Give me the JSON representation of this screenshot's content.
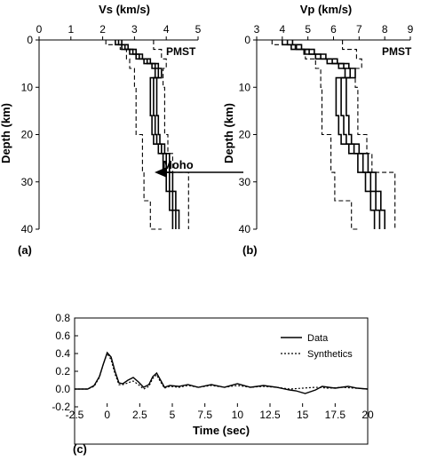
{
  "chart_data": [
    {
      "type": "line",
      "panel_label": "(a)",
      "xlabel": "Vs (km/s)",
      "ylabel": "Depth (km)",
      "station": "PMST",
      "annotation": "Moho",
      "annotation_depth": 28,
      "xlim": [
        0,
        5
      ],
      "ylim": [
        0,
        40
      ],
      "x_ticks": [
        "0",
        "1",
        "2",
        "3",
        "4",
        "5"
      ],
      "y_ticks": [
        "0",
        "10",
        "20",
        "30",
        "40"
      ],
      "series": [
        {
          "style": "solid",
          "depth": [
            0,
            1,
            2,
            3,
            4,
            5,
            6,
            8,
            12,
            16,
            20,
            22,
            24,
            28,
            32,
            36,
            40
          ],
          "values": [
            2.4,
            2.6,
            2.85,
            3.05,
            3.3,
            3.55,
            3.65,
            3.5,
            3.5,
            3.55,
            3.6,
            3.75,
            3.9,
            4.0,
            4.1,
            4.2,
            4.2
          ]
        },
        {
          "style": "solid",
          "depth": [
            0,
            1,
            2,
            3,
            4,
            5,
            6,
            8,
            12,
            16,
            20,
            22,
            24,
            28,
            32,
            36,
            40
          ],
          "values": [
            2.5,
            2.7,
            2.95,
            3.15,
            3.4,
            3.65,
            3.75,
            3.6,
            3.6,
            3.65,
            3.7,
            3.85,
            4.0,
            4.1,
            4.2,
            4.3,
            4.3
          ]
        },
        {
          "style": "solid",
          "depth": [
            0,
            1,
            2,
            3,
            4,
            5,
            6,
            8,
            12,
            16,
            20,
            22,
            24,
            28,
            32,
            36,
            40
          ],
          "values": [
            2.6,
            2.8,
            3.05,
            3.25,
            3.5,
            3.75,
            3.85,
            3.7,
            3.7,
            3.75,
            3.8,
            3.95,
            4.1,
            4.2,
            4.3,
            4.4,
            4.4
          ]
        },
        {
          "style": "dashed",
          "depth": [
            0,
            1,
            2,
            4,
            6,
            10,
            20,
            28,
            34,
            40
          ],
          "values": [
            2.1,
            2.55,
            2.75,
            2.85,
            3.0,
            3.05,
            3.25,
            3.3,
            3.5,
            3.85
          ]
        },
        {
          "style": "dashed",
          "depth": [
            0,
            2,
            4,
            6,
            10,
            20,
            24,
            28,
            34,
            40
          ],
          "values": [
            3.6,
            3.85,
            4.0,
            3.9,
            3.95,
            4.05,
            4.2,
            4.7,
            4.7,
            4.7
          ]
        }
      ]
    },
    {
      "type": "line",
      "panel_label": "(b)",
      "xlabel": "Vp (km/s)",
      "ylabel": "Depth (km)",
      "station": "PMST",
      "xlim": [
        3,
        9
      ],
      "ylim": [
        0,
        40
      ],
      "x_ticks": [
        "3",
        "4",
        "5",
        "6",
        "7",
        "8",
        "9"
      ],
      "y_ticks": [
        "0",
        "10",
        "20",
        "30",
        "40"
      ],
      "series": [
        {
          "style": "solid",
          "depth": [
            0,
            1,
            2,
            3,
            4,
            5,
            6,
            8,
            12,
            16,
            20,
            22,
            24,
            28,
            32,
            36,
            40
          ],
          "values": [
            4.0,
            4.35,
            4.85,
            5.3,
            5.75,
            6.2,
            6.45,
            6.1,
            6.1,
            6.2,
            6.3,
            6.6,
            6.95,
            7.25,
            7.45,
            7.6,
            7.6
          ]
        },
        {
          "style": "solid",
          "depth": [
            0,
            1,
            2,
            3,
            4,
            5,
            6,
            8,
            12,
            16,
            20,
            22,
            24,
            28,
            32,
            36,
            40
          ],
          "values": [
            4.2,
            4.55,
            5.05,
            5.5,
            5.95,
            6.4,
            6.65,
            6.3,
            6.3,
            6.4,
            6.5,
            6.8,
            7.15,
            7.45,
            7.65,
            7.8,
            7.8
          ]
        },
        {
          "style": "solid",
          "depth": [
            0,
            1,
            2,
            3,
            4,
            5,
            6,
            8,
            12,
            16,
            20,
            22,
            24,
            28,
            32,
            36,
            40
          ],
          "values": [
            4.4,
            4.75,
            5.25,
            5.7,
            6.15,
            6.6,
            6.85,
            6.5,
            6.5,
            6.6,
            6.7,
            7.0,
            7.35,
            7.65,
            7.85,
            8.0,
            8.0
          ]
        },
        {
          "style": "dashed",
          "depth": [
            0,
            1,
            2,
            4,
            6,
            10,
            20,
            28,
            34,
            40
          ],
          "values": [
            3.6,
            4.5,
            4.9,
            5.3,
            5.5,
            5.55,
            5.9,
            6.05,
            6.7,
            7.0
          ]
        },
        {
          "style": "dashed",
          "depth": [
            0,
            2,
            4,
            6,
            10,
            20,
            24,
            28,
            34,
            40
          ],
          "values": [
            6.35,
            6.9,
            7.1,
            6.85,
            6.95,
            7.3,
            7.5,
            8.4,
            8.4,
            8.4
          ]
        }
      ]
    },
    {
      "type": "line",
      "panel_label": "(c)",
      "xlabel": "Time (sec)",
      "ylabel": "",
      "xlim": [
        -2.5,
        20
      ],
      "ylim": [
        -0.2,
        0.8
      ],
      "x_ticks": [
        "-2.5",
        "0",
        "2.5",
        "5",
        "7.5",
        "10",
        "12.5",
        "15",
        "17.5",
        "20"
      ],
      "y_ticks": [
        "-0.2",
        "0.0",
        "0.2",
        "0.4",
        "0.6",
        "0.8"
      ],
      "legend_position": "right",
      "series": [
        {
          "name": "Data",
          "style": "solid",
          "x": [
            -2.5,
            -1.5,
            -1.0,
            -0.6,
            -0.3,
            0.0,
            0.3,
            0.6,
            0.9,
            1.2,
            1.6,
            2.0,
            2.4,
            2.8,
            3.2,
            3.5,
            3.8,
            4.1,
            4.4,
            4.8,
            5.5,
            6.2,
            7.0,
            8.0,
            9.0,
            10.0,
            11.0,
            12.0,
            13.0,
            14.0,
            14.5,
            15.2,
            16.0,
            16.5,
            17.5,
            18.5,
            19.2,
            20.0
          ],
          "y": [
            0.0,
            0.0,
            0.04,
            0.14,
            0.28,
            0.41,
            0.36,
            0.2,
            0.07,
            0.06,
            0.1,
            0.13,
            0.08,
            0.02,
            0.05,
            0.14,
            0.18,
            0.1,
            0.02,
            0.04,
            0.03,
            0.05,
            0.02,
            0.05,
            0.02,
            0.06,
            0.02,
            0.04,
            0.02,
            -0.01,
            -0.02,
            -0.05,
            -0.01,
            0.03,
            0.01,
            0.03,
            0.01,
            0.0
          ]
        },
        {
          "name": "Synthetics",
          "style": "dotted",
          "x": [
            -2.5,
            -1.5,
            -1.0,
            -0.6,
            -0.3,
            0.0,
            0.3,
            0.6,
            0.9,
            1.2,
            1.6,
            2.0,
            2.4,
            2.8,
            3.2,
            3.5,
            3.8,
            4.1,
            4.4,
            4.8,
            5.5,
            6.2,
            7.0,
            8.0,
            9.0,
            10.0,
            11.0,
            12.0,
            13.0,
            14.0,
            15.0,
            16.0,
            17.0,
            18.0,
            19.0,
            20.0
          ],
          "y": [
            0.0,
            0.0,
            0.03,
            0.13,
            0.28,
            0.4,
            0.33,
            0.17,
            0.05,
            0.05,
            0.07,
            0.09,
            0.05,
            0.0,
            0.03,
            0.12,
            0.16,
            0.08,
            0.01,
            0.03,
            0.02,
            0.04,
            0.02,
            0.04,
            0.02,
            0.04,
            0.02,
            0.03,
            0.02,
            0.0,
            0.01,
            0.02,
            0.01,
            0.02,
            0.01,
            0.0
          ]
        }
      ]
    }
  ]
}
